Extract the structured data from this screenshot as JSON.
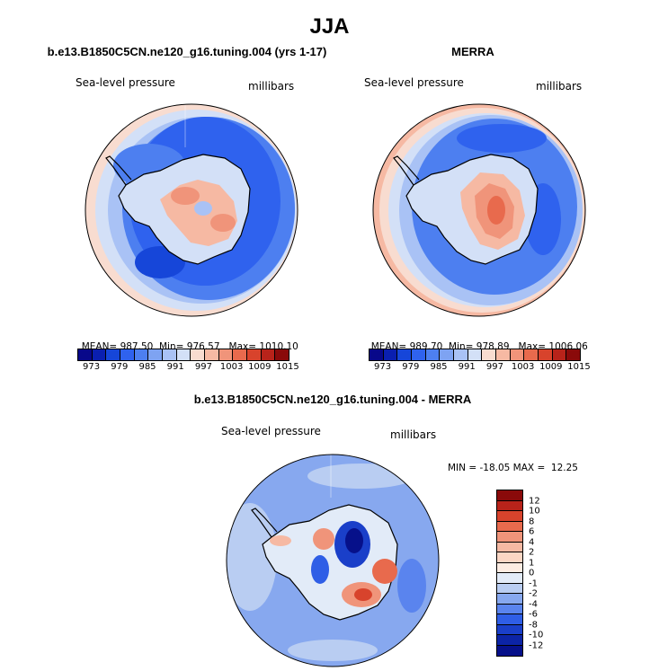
{
  "main_title": "JJA",
  "panels": [
    {
      "title": "b.e13.B1850C5CN.ne120_g16.tuning.004 (yrs 1-17)",
      "variable": "Sea-level pressure",
      "units": "millibars",
      "mean_label": "MEAN=",
      "mean": "987.50",
      "min_label": "Min=",
      "min": "976.57",
      "max_label": "Max=",
      "max": "1010.10"
    },
    {
      "title": "MERRA",
      "variable": "Sea-level pressure",
      "units": "millibars",
      "mean_label": "MEAN=",
      "mean": "989.70",
      "min_label": "Min=",
      "min": "978.89",
      "max_label": "Max=",
      "max": "1006.06"
    },
    {
      "title": "b.e13.B1850C5CN.ne120_g16.tuning.004 - MERRA",
      "variable": "Sea-level pressure",
      "units": "millibars",
      "minmax_text": "MIN = -18.05 MAX =  12.25"
    }
  ],
  "abs_colorbar": {
    "labels": [
      "973",
      "979",
      "985",
      "991",
      "997",
      "1003",
      "1009",
      "1015"
    ],
    "colors": [
      "#08088a",
      "#0a1fb0",
      "#1646d9",
      "#2f62ee",
      "#4d7ff0",
      "#7ea3f2",
      "#a9c2f5",
      "#d3e0f7",
      "#f8dcd0",
      "#f6b9a3",
      "#f0947a",
      "#e86a4d",
      "#d8432c",
      "#b8231a",
      "#8a0a0a"
    ]
  },
  "diff_colorbar": {
    "labels": [
      "12",
      "10",
      "8",
      "6",
      "4",
      "2",
      "1",
      "0",
      "-1",
      "-2",
      "-4",
      "-6",
      "-8",
      "-10",
      "-12"
    ],
    "colors": [
      "#8a0a0a",
      "#b8231a",
      "#d8432c",
      "#e86a4d",
      "#f0947a",
      "#f6b9a3",
      "#fbd6c4",
      "#fdece2",
      "#e2ebf8",
      "#b9cdf2",
      "#87a8ef",
      "#5a84ee",
      "#2f5ee6",
      "#1a3fc9",
      "#0c24a6",
      "#06108a"
    ]
  },
  "palette": {
    "ocean_low": "#2f62ee",
    "ocean_mid": "#4d7ff0",
    "ocean_light": "#a9c2f5",
    "ocean_pale": "#d3e0f7",
    "warm_pale": "#f8dcd0",
    "warm": "#f0947a",
    "warm_deep": "#d8432c",
    "diff_base": "#87a8ef",
    "diff_light": "#b9cdf2"
  }
}
